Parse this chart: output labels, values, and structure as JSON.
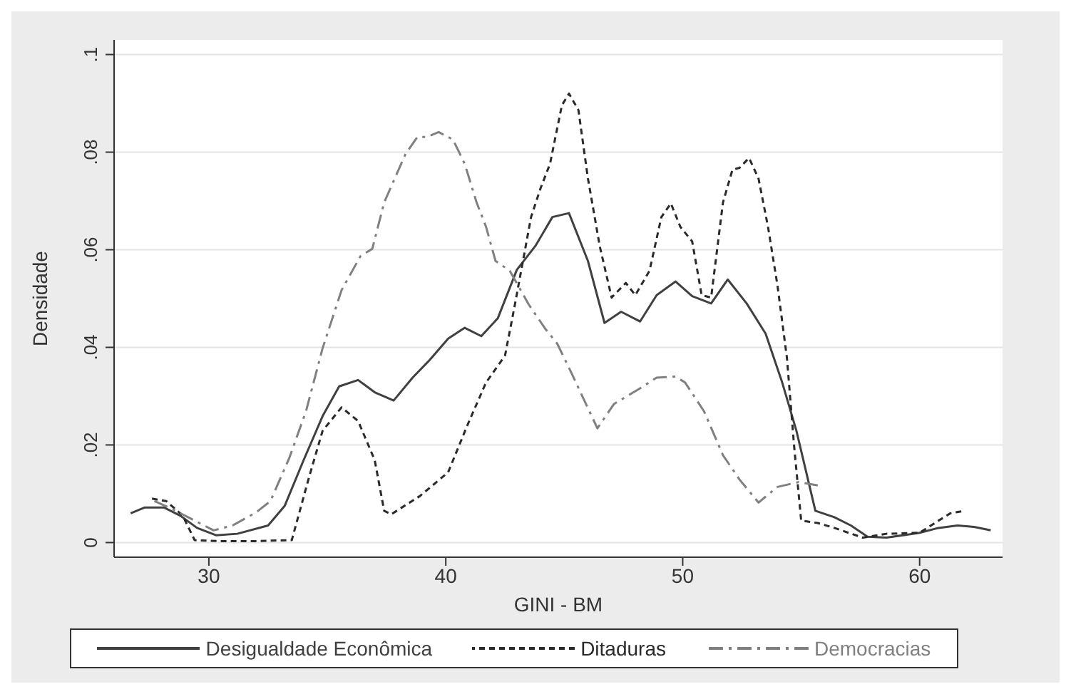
{
  "chart_data": {
    "type": "line",
    "xlabel": "GINI - BM",
    "ylabel": "Densidade",
    "xlim": [
      26,
      63.5
    ],
    "xticks": [
      30,
      40,
      50,
      60
    ],
    "ylim": [
      -0.003,
      0.103
    ],
    "yticks": [
      0,
      {
        "value": 0.02,
        "label": ".02"
      },
      {
        "value": 0.04,
        "label": ".04"
      },
      {
        "value": 0.06,
        "label": ".06"
      },
      {
        "value": 0.08,
        "label": ".08"
      },
      {
        "value": 0.1,
        "label": ".1"
      }
    ],
    "grid": "y",
    "legend": "bottom",
    "marker": "none",
    "series": [
      {
        "name": "Desigualdade Econômica",
        "color": "#404040",
        "line_style": "solid",
        "x": [
          26.7,
          27.3,
          28.1,
          28.8,
          29.5,
          30.3,
          31.2,
          32.5,
          33.2,
          34.0,
          34.8,
          35.5,
          36.3,
          37.0,
          37.8,
          38.6,
          39.3,
          40.1,
          40.8,
          41.5,
          42.2,
          43.0,
          43.8,
          44.5,
          45.2,
          46.0,
          46.7,
          47.4,
          48.2,
          48.9,
          49.7,
          50.4,
          51.2,
          51.9,
          52.7,
          53.5,
          54.2,
          54.8,
          55.6,
          56.4,
          57.1,
          57.8,
          58.6,
          60.0,
          60.8,
          61.6,
          62.3,
          63.0
        ],
        "values": [
          0.006,
          0.0072,
          0.0072,
          0.0055,
          0.003,
          0.0015,
          0.0018,
          0.0035,
          0.0075,
          0.0169,
          0.0259,
          0.032,
          0.0333,
          0.0308,
          0.0291,
          0.0338,
          0.0373,
          0.0418,
          0.044,
          0.0423,
          0.046,
          0.0559,
          0.0609,
          0.0667,
          0.0675,
          0.0577,
          0.045,
          0.0473,
          0.0453,
          0.0507,
          0.0535,
          0.0505,
          0.049,
          0.0539,
          0.049,
          0.0428,
          0.0328,
          0.0229,
          0.0065,
          0.0052,
          0.0035,
          0.0012,
          0.001,
          0.002,
          0.003,
          0.0035,
          0.0032,
          0.0025
        ]
      },
      {
        "name": "Ditaduras",
        "color": "#2a2a2a",
        "line_style": "dashed",
        "x": [
          27.6,
          28.2,
          28.9,
          29.4,
          30.4,
          32.0,
          33.5,
          34.2,
          34.8,
          35.6,
          36.3,
          37.0,
          37.4,
          37.7,
          38.9,
          40.1,
          40.9,
          41.7,
          42.5,
          42.9,
          43.6,
          44.0,
          44.4,
          44.9,
          45.2,
          45.6,
          46.0,
          46.5,
          47.0,
          47.6,
          48.0,
          48.6,
          49.1,
          49.5,
          49.9,
          50.4,
          50.8,
          51.2,
          51.7,
          52.1,
          52.4,
          52.8,
          53.2,
          53.6,
          54.0,
          54.4,
          54.7,
          55.0,
          55.7,
          56.4,
          57.6,
          58.6,
          60.0,
          60.8,
          61.3,
          61.9
        ],
        "values": [
          0.009,
          0.0085,
          0.0055,
          0.0005,
          0.0003,
          0.0003,
          0.0005,
          0.0129,
          0.0229,
          0.0277,
          0.0249,
          0.0169,
          0.0065,
          0.0058,
          0.0095,
          0.0144,
          0.0239,
          0.0328,
          0.0383,
          0.0483,
          0.0667,
          0.0726,
          0.0776,
          0.0896,
          0.092,
          0.0886,
          0.0746,
          0.0607,
          0.0502,
          0.0532,
          0.0507,
          0.0557,
          0.0667,
          0.0695,
          0.0647,
          0.0617,
          0.0507,
          0.0502,
          0.0697,
          0.0764,
          0.0768,
          0.0788,
          0.0746,
          0.0647,
          0.0527,
          0.0378,
          0.0199,
          0.0045,
          0.004,
          0.003,
          0.001,
          0.0018,
          0.002,
          0.0045,
          0.006,
          0.0065
        ]
      },
      {
        "name": "Democracias",
        "color": "#808080",
        "line_style": "dashdot",
        "x": [
          27.7,
          28.4,
          29.2,
          30.2,
          31.0,
          32.0,
          32.6,
          33.4,
          34.1,
          34.8,
          35.6,
          36.4,
          36.9,
          37.4,
          38.3,
          38.8,
          39.2,
          39.7,
          40.3,
          40.8,
          41.3,
          41.7,
          42.1,
          42.7,
          43.5,
          44.2,
          44.7,
          45.3,
          46.4,
          47.1,
          48.1,
          48.9,
          49.7,
          50.1,
          50.9,
          51.7,
          52.4,
          53.2,
          54.0,
          54.9,
          55.7
        ],
        "values": [
          0.0085,
          0.007,
          0.005,
          0.0025,
          0.0035,
          0.0062,
          0.0085,
          0.0174,
          0.0269,
          0.0398,
          0.0517,
          0.0587,
          0.0602,
          0.0697,
          0.0796,
          0.0831,
          0.0831,
          0.0841,
          0.0826,
          0.0776,
          0.0697,
          0.0647,
          0.0577,
          0.0557,
          0.0488,
          0.0438,
          0.0408,
          0.0348,
          0.0234,
          0.0284,
          0.0313,
          0.0338,
          0.034,
          0.0328,
          0.0269,
          0.0179,
          0.0129,
          0.0082,
          0.0114,
          0.0124,
          0.0117
        ]
      }
    ]
  }
}
